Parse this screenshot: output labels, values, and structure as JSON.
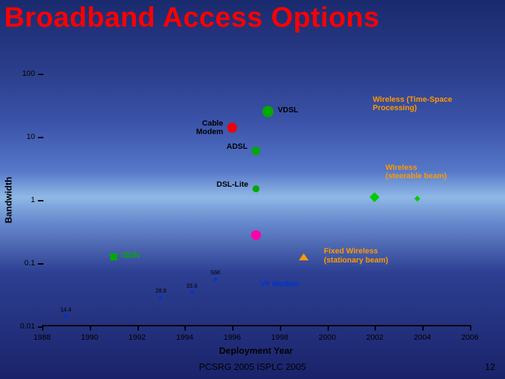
{
  "title": "Broadband Access Options",
  "footer": "PCSRG 2005 ISPLC 2005",
  "page_number": "12",
  "chart": {
    "type": "scatter",
    "xlabel": "Deployment Year",
    "ylabel": "Bandwidth",
    "xlim": [
      1988,
      2006
    ],
    "ylim_log10": [
      -2,
      2
    ],
    "y_ticks": [
      {
        "v": -2,
        "label": "0.01"
      },
      {
        "v": -1,
        "label": "0.1"
      },
      {
        "v": 0,
        "label": "1"
      },
      {
        "v": 1,
        "label": "10"
      },
      {
        "v": 2,
        "label": "100"
      }
    ],
    "x_ticks": [
      1988,
      1990,
      1992,
      1994,
      1996,
      1998,
      2000,
      2002,
      2004,
      2006
    ],
    "series": [
      {
        "name": "modem-14.4",
        "shape": "circle",
        "size": 5,
        "color": "#0033cc",
        "x": 1989,
        "ylog": -1.84,
        "mini": "14.4"
      },
      {
        "name": "modem-28.8",
        "shape": "circle",
        "size": 5,
        "color": "#0033cc",
        "x": 1993,
        "ylog": -1.54,
        "mini": "28.8"
      },
      {
        "name": "modem-33.6",
        "shape": "circle",
        "size": 5,
        "color": "#0033cc",
        "x": 1994.3,
        "ylog": -1.47,
        "mini": "33.6"
      },
      {
        "name": "modem-56k",
        "shape": "circle",
        "size": 5,
        "color": "#0033cc",
        "x": 1995.3,
        "ylog": -1.25,
        "mini": "56K"
      },
      {
        "name": "vf-modem",
        "label": "VF Modem",
        "label_color": "#0033cc",
        "label_pos": "right",
        "x": 1997,
        "ylog": -1.35
      },
      {
        "name": "isdn",
        "shape": "square",
        "size": 10,
        "color": "#00aa00",
        "x": 1991,
        "ylog": -0.9,
        "label": "ISDN",
        "label_color": "#00aa00",
        "label_pos": "right"
      },
      {
        "name": "cable-modem",
        "shape": "circle",
        "size": 14,
        "color": "#ee0000",
        "x": 1996,
        "ylog": 1.15,
        "label": "Cable\nModem",
        "label_color": "#000",
        "label_pos": "left"
      },
      {
        "name": "adsl",
        "shape": "circle",
        "size": 12,
        "color": "#00aa00",
        "x": 1997,
        "ylog": 0.78,
        "label": "ADSL",
        "label_color": "#000",
        "label_pos": "left"
      },
      {
        "name": "vdsl",
        "shape": "circle",
        "size": 16,
        "color": "#00aa00",
        "x": 1997.5,
        "ylog": 1.4,
        "label": "VDSL",
        "label_color": "#000",
        "label_pos": "right"
      },
      {
        "name": "dsl-lite",
        "shape": "circle",
        "size": 10,
        "color": "#00aa00",
        "x": 1997,
        "ylog": 0.18,
        "label": "DSL-Lite",
        "label_color": "#000",
        "label_pos": "left"
      },
      {
        "name": "satellite",
        "shape": "circle",
        "size": 14,
        "color": "#ff00aa",
        "x": 1997,
        "ylog": -0.55
      },
      {
        "name": "fixed-wireless",
        "shape": "triangle",
        "size": 10,
        "color": "#ff9900",
        "x": 1999,
        "ylog": -0.9,
        "label": "Fixed Wireless\n(stationary beam)",
        "label_color": "#ff9900",
        "label_pos": "right-far"
      },
      {
        "name": "wireless-steerable",
        "shape": "diamond",
        "size": 10,
        "color": "#00cc00",
        "x": 2002,
        "ylog": 0.05,
        "label": "Wireless\n(steerable beam)",
        "label_color": "#ff9900",
        "label_pos": "right-up"
      },
      {
        "name": "wireless-steerable-2",
        "shape": "diamond",
        "size": 6,
        "color": "#00cc00",
        "x": 2003.8,
        "ylog": 0.02
      },
      {
        "name": "wireless-tsp",
        "label": "Wireless (Time-Space\nProcessing)",
        "label_color": "#ff9900",
        "label_pos": "abs",
        "x": 2002.5,
        "ylog": 1.55
      }
    ]
  }
}
